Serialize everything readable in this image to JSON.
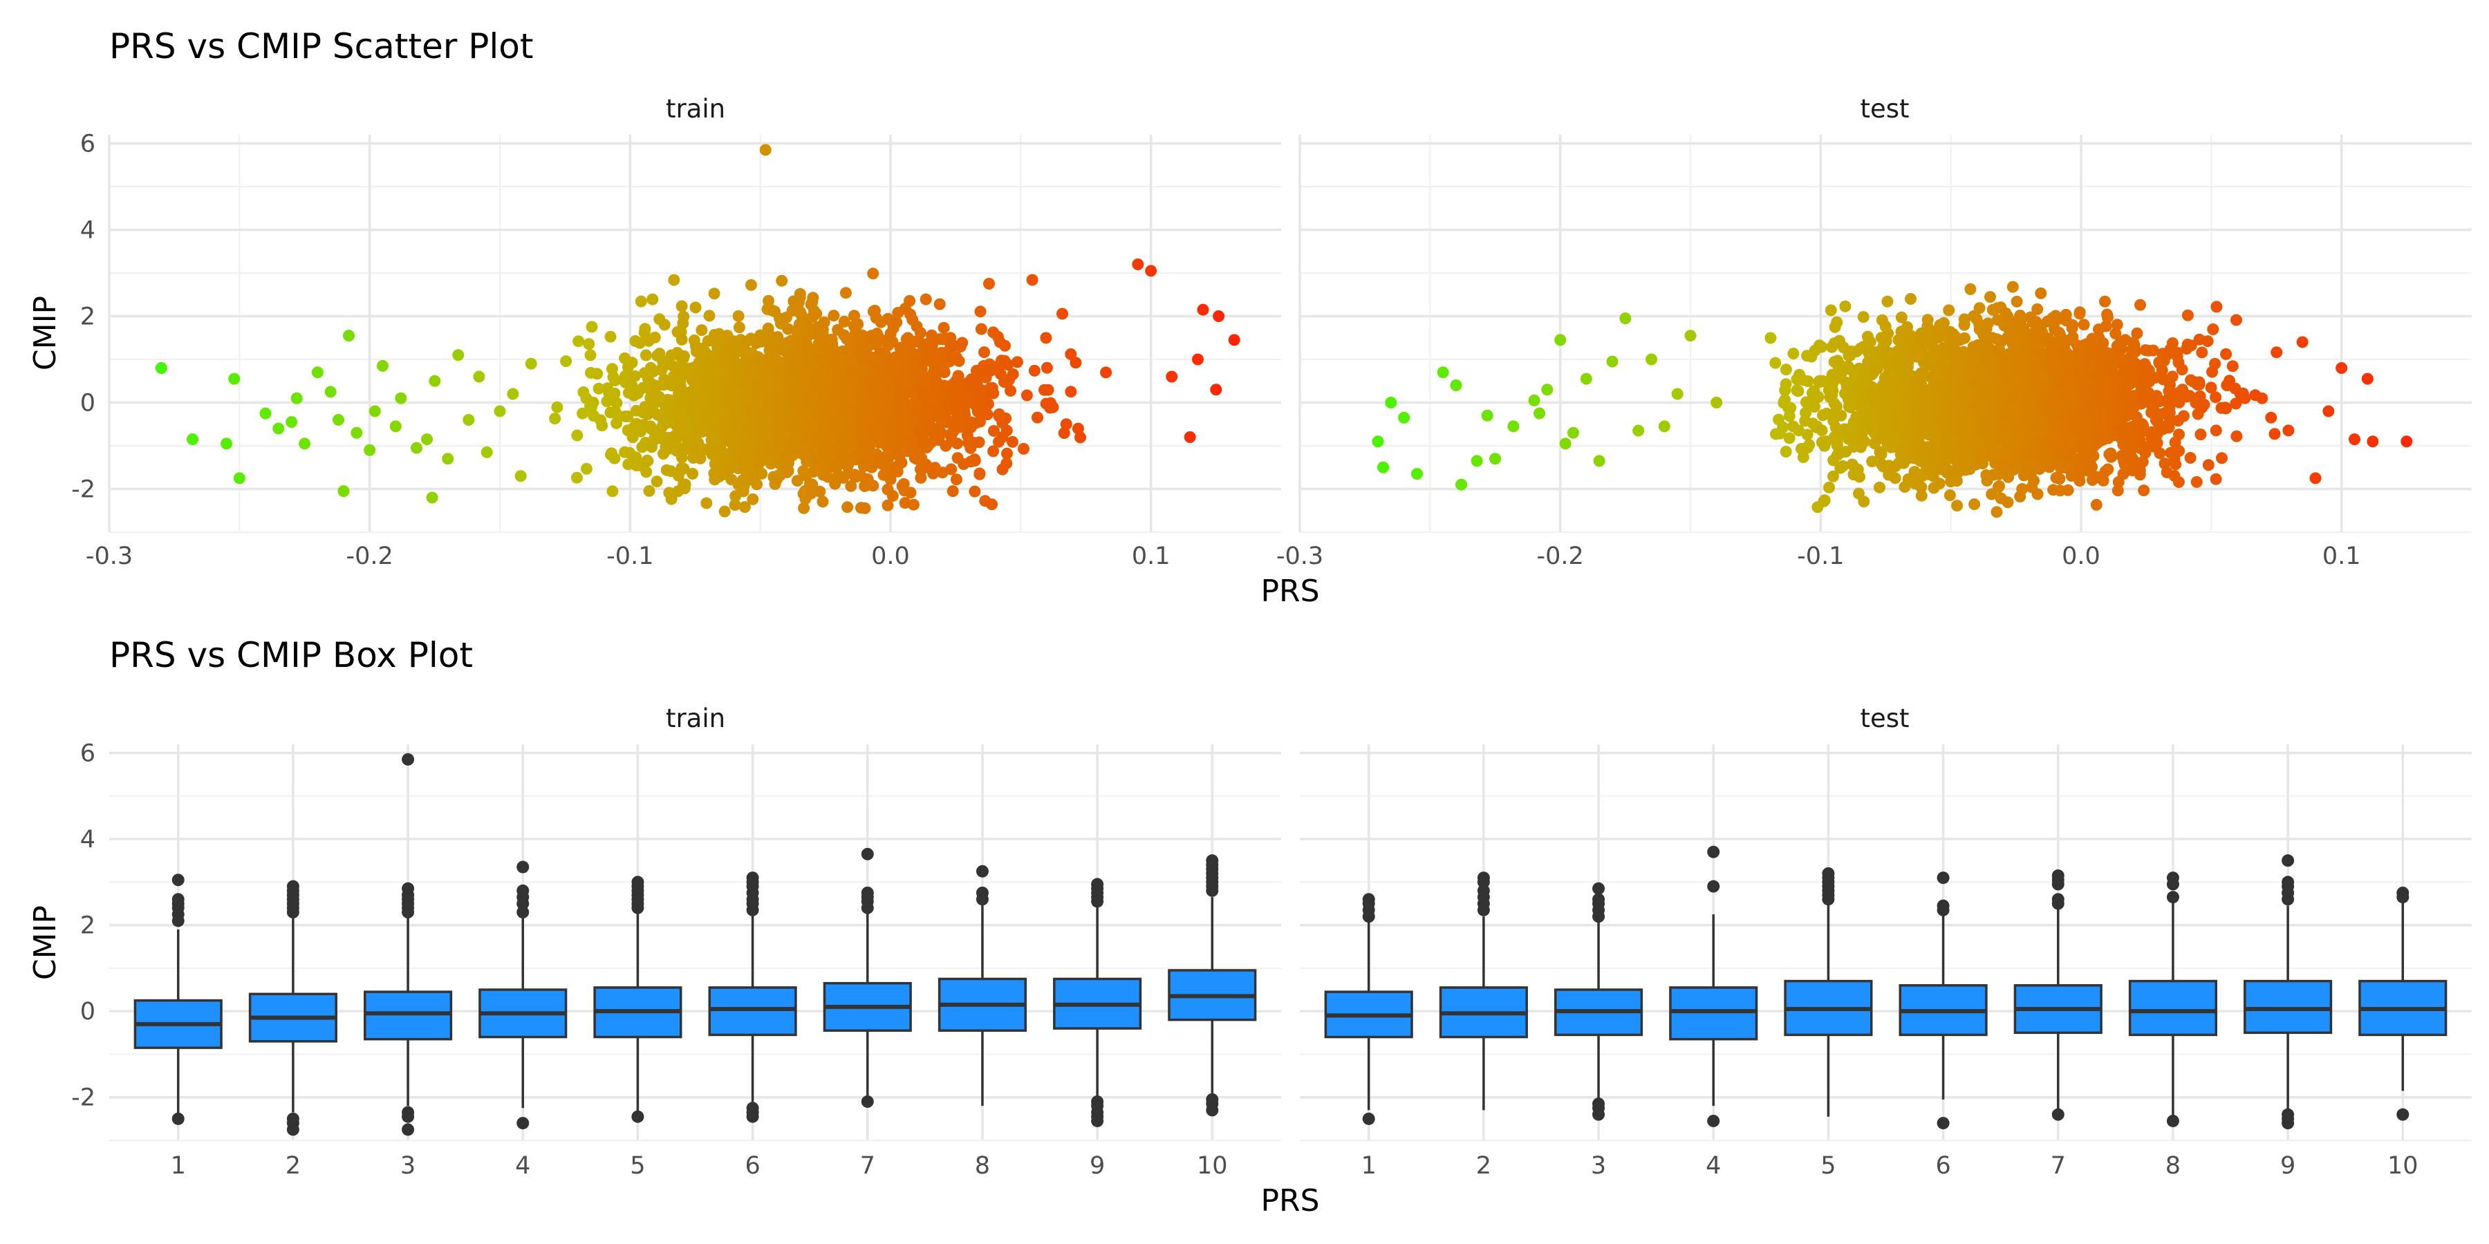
{
  "scatter": {
    "title": "PRS vs CMIP Scatter Plot",
    "xlabel": "PRS",
    "ylabel": "CMIP",
    "x_ticks": [
      -0.3,
      -0.2,
      -0.1,
      0.0,
      0.1
    ],
    "x_tick_labels": [
      "-0.3",
      "-0.2",
      "-0.1",
      "0.0",
      "0.1"
    ],
    "y_ticks": [
      -2,
      0,
      2,
      4,
      6
    ],
    "y_tick_labels": [
      "-2",
      "0",
      "2",
      "4",
      "6"
    ]
  },
  "box": {
    "title": "PRS vs CMIP Box Plot",
    "xlabel": "PRS",
    "ylabel": "CMIP",
    "y_ticks": [
      -2,
      0,
      2,
      4,
      6
    ],
    "y_tick_labels": [
      "-2",
      "0",
      "2",
      "4",
      "6"
    ]
  },
  "chart_data": [
    {
      "type": "scatter",
      "title": "PRS vs CMIP Scatter Plot",
      "xlabel": "PRS",
      "ylabel": "CMIP",
      "xlim": [
        -0.3,
        0.15
      ],
      "ylim": [
        -3.0,
        6.2
      ],
      "grid": true,
      "color_scale": {
        "low": "#33ff00",
        "mid": "#c0bb00",
        "high": "#ff2200",
        "mapped_to": "PRS"
      },
      "facets": [
        {
          "name": "train",
          "bulk": {
            "x_range": [
              -0.13,
              0.09
            ],
            "x_center": -0.03,
            "y_center": 0.0,
            "y_sd": 0.9,
            "y_range": [
              -2.7,
              3.6
            ]
          },
          "points": [
            {
              "x": -0.28,
              "y": 0.8
            },
            {
              "x": -0.268,
              "y": -0.85
            },
            {
              "x": -0.255,
              "y": -0.95
            },
            {
              "x": -0.252,
              "y": 0.55
            },
            {
              "x": -0.25,
              "y": -1.75
            },
            {
              "x": -0.24,
              "y": -0.25
            },
            {
              "x": -0.235,
              "y": -0.6
            },
            {
              "x": -0.23,
              "y": -0.45
            },
            {
              "x": -0.228,
              "y": 0.1
            },
            {
              "x": -0.225,
              "y": -0.95
            },
            {
              "x": -0.22,
              "y": 0.7
            },
            {
              "x": -0.215,
              "y": 0.25
            },
            {
              "x": -0.212,
              "y": -0.4
            },
            {
              "x": -0.21,
              "y": -2.05
            },
            {
              "x": -0.208,
              "y": 1.55
            },
            {
              "x": -0.205,
              "y": -0.7
            },
            {
              "x": -0.2,
              "y": -1.1
            },
            {
              "x": -0.198,
              "y": -0.2
            },
            {
              "x": -0.195,
              "y": 0.85
            },
            {
              "x": -0.19,
              "y": -0.55
            },
            {
              "x": -0.188,
              "y": 0.1
            },
            {
              "x": -0.182,
              "y": -1.05
            },
            {
              "x": -0.178,
              "y": -0.85
            },
            {
              "x": -0.175,
              "y": 0.5
            },
            {
              "x": -0.17,
              "y": -1.3
            },
            {
              "x": -0.166,
              "y": 1.1
            },
            {
              "x": -0.162,
              "y": -0.4
            },
            {
              "x": -0.158,
              "y": 0.6
            },
            {
              "x": -0.155,
              "y": -1.15
            },
            {
              "x": -0.15,
              "y": -0.2
            },
            {
              "x": -0.176,
              "y": -2.2
            },
            {
              "x": -0.145,
              "y": 0.2
            },
            {
              "x": -0.142,
              "y": -1.7
            },
            {
              "x": -0.138,
              "y": 0.9
            },
            {
              "x": -0.048,
              "y": 5.85
            },
            {
              "x": 0.1,
              "y": 3.05
            },
            {
              "x": 0.095,
              "y": 3.2
            },
            {
              "x": 0.12,
              "y": 2.15
            },
            {
              "x": 0.126,
              "y": 2.0
            },
            {
              "x": 0.132,
              "y": 1.45
            },
            {
              "x": 0.115,
              "y": -0.8
            },
            {
              "x": 0.108,
              "y": 0.6
            },
            {
              "x": 0.118,
              "y": 1.0
            },
            {
              "x": 0.125,
              "y": 0.3
            }
          ]
        },
        {
          "name": "test",
          "bulk": {
            "x_range": [
              -0.12,
              0.08
            ],
            "x_center": -0.03,
            "y_center": 0.0,
            "y_sd": 0.85,
            "y_range": [
              -2.6,
              3.7
            ]
          },
          "points": [
            {
              "x": -0.27,
              "y": -0.9
            },
            {
              "x": -0.268,
              "y": -1.5
            },
            {
              "x": -0.265,
              "y": 0.0
            },
            {
              "x": -0.26,
              "y": -0.35
            },
            {
              "x": -0.255,
              "y": -1.65
            },
            {
              "x": -0.245,
              "y": 0.7
            },
            {
              "x": -0.24,
              "y": 0.4
            },
            {
              "x": -0.238,
              "y": -1.9
            },
            {
              "x": -0.232,
              "y": -1.35
            },
            {
              "x": -0.228,
              "y": -0.3
            },
            {
              "x": -0.225,
              "y": -1.3
            },
            {
              "x": -0.218,
              "y": -0.55
            },
            {
              "x": -0.21,
              "y": 0.05
            },
            {
              "x": -0.208,
              "y": -0.25
            },
            {
              "x": -0.205,
              "y": 0.3
            },
            {
              "x": -0.2,
              "y": 1.45
            },
            {
              "x": -0.198,
              "y": -0.95
            },
            {
              "x": -0.195,
              "y": -0.7
            },
            {
              "x": -0.19,
              "y": 0.55
            },
            {
              "x": -0.185,
              "y": -1.35
            },
            {
              "x": -0.18,
              "y": 0.95
            },
            {
              "x": -0.175,
              "y": 1.95
            },
            {
              "x": -0.17,
              "y": -0.65
            },
            {
              "x": -0.165,
              "y": 1.0
            },
            {
              "x": -0.16,
              "y": -0.55
            },
            {
              "x": -0.155,
              "y": 0.2
            },
            {
              "x": -0.15,
              "y": 1.55
            },
            {
              "x": -0.14,
              "y": 0.0
            },
            {
              "x": 0.1,
              "y": 0.8
            },
            {
              "x": 0.105,
              "y": -0.85
            },
            {
              "x": 0.11,
              "y": 0.55
            },
            {
              "x": 0.112,
              "y": -0.9
            },
            {
              "x": 0.125,
              "y": -0.9
            },
            {
              "x": 0.09,
              "y": -1.75
            },
            {
              "x": 0.095,
              "y": -0.2
            },
            {
              "x": 0.085,
              "y": 1.4
            }
          ]
        }
      ]
    },
    {
      "type": "box",
      "title": "PRS vs CMIP Box Plot",
      "xlabel": "PRS",
      "ylabel": "CMIP",
      "categories": [
        "1",
        "2",
        "3",
        "4",
        "5",
        "6",
        "7",
        "8",
        "9",
        "10"
      ],
      "ylim": [
        -3.0,
        6.2
      ],
      "box_color": "#1e90ff",
      "facets": [
        {
          "name": "train",
          "boxes": [
            {
              "q1": -0.85,
              "median": -0.3,
              "q3": 0.25,
              "whisker_low": -2.45,
              "whisker_high": 1.9,
              "outliers": [
                2.1,
                2.25,
                2.4,
                2.5,
                2.6,
                3.05,
                -2.5
              ]
            },
            {
              "q1": -0.7,
              "median": -0.15,
              "q3": 0.4,
              "whisker_low": -2.35,
              "whisker_high": 2.2,
              "outliers": [
                2.3,
                2.4,
                2.5,
                2.6,
                2.7,
                2.8,
                2.9,
                -2.5,
                -2.6,
                -2.75
              ]
            },
            {
              "q1": -0.65,
              "median": -0.05,
              "q3": 0.45,
              "whisker_low": -2.2,
              "whisker_high": 2.2,
              "outliers": [
                2.3,
                2.4,
                2.5,
                2.6,
                2.7,
                2.85,
                5.85,
                -2.35,
                -2.45,
                -2.75
              ]
            },
            {
              "q1": -0.6,
              "median": -0.05,
              "q3": 0.5,
              "whisker_low": -2.25,
              "whisker_high": 2.2,
              "outliers": [
                2.3,
                2.5,
                2.65,
                2.8,
                3.35,
                -2.6
              ]
            },
            {
              "q1": -0.6,
              "median": 0.0,
              "q3": 0.55,
              "whisker_low": -2.35,
              "whisker_high": 2.3,
              "outliers": [
                2.4,
                2.5,
                2.6,
                2.7,
                2.8,
                2.9,
                3.0,
                -2.45
              ]
            },
            {
              "q1": -0.55,
              "median": 0.05,
              "q3": 0.55,
              "whisker_low": -2.15,
              "whisker_high": 2.25,
              "outliers": [
                2.35,
                2.5,
                2.6,
                2.75,
                2.9,
                3.0,
                3.1,
                -2.25,
                -2.35,
                -2.45
              ]
            },
            {
              "q1": -0.45,
              "median": 0.1,
              "q3": 0.65,
              "whisker_low": -2.1,
              "whisker_high": 2.3,
              "outliers": [
                2.4,
                2.55,
                2.65,
                2.75,
                3.65,
                -2.1
              ]
            },
            {
              "q1": -0.45,
              "median": 0.15,
              "q3": 0.75,
              "whisker_low": -2.2,
              "whisker_high": 2.5,
              "outliers": [
                2.6,
                2.75,
                3.25
              ]
            },
            {
              "q1": -0.4,
              "median": 0.15,
              "q3": 0.75,
              "whisker_low": -2.05,
              "whisker_high": 2.45,
              "outliers": [
                2.55,
                2.65,
                2.75,
                2.85,
                2.95,
                -2.1,
                -2.2,
                -2.35,
                -2.45,
                -2.55
              ]
            },
            {
              "q1": -0.2,
              "median": 0.35,
              "q3": 0.95,
              "whisker_low": -1.95,
              "whisker_high": 2.65,
              "outliers": [
                2.8,
                2.9,
                3.0,
                3.1,
                3.2,
                3.3,
                3.4,
                3.5,
                -2.05,
                -2.15,
                -2.3
              ]
            }
          ]
        },
        {
          "name": "test",
          "boxes": [
            {
              "q1": -0.6,
              "median": -0.1,
              "q3": 0.45,
              "whisker_low": -2.3,
              "whisker_high": 2.1,
              "outliers": [
                2.2,
                2.35,
                2.5,
                2.6,
                -2.5
              ]
            },
            {
              "q1": -0.6,
              "median": -0.05,
              "q3": 0.55,
              "whisker_low": -2.3,
              "whisker_high": 2.2,
              "outliers": [
                2.35,
                2.5,
                2.65,
                2.8,
                3.0,
                3.1
              ]
            },
            {
              "q1": -0.55,
              "median": 0.0,
              "q3": 0.5,
              "whisker_low": -2.05,
              "whisker_high": 2.1,
              "outliers": [
                2.2,
                2.35,
                2.5,
                2.6,
                2.85,
                -2.15,
                -2.25,
                -2.4
              ]
            },
            {
              "q1": -0.65,
              "median": 0.0,
              "q3": 0.55,
              "whisker_low": -2.2,
              "whisker_high": 2.25,
              "outliers": [
                2.9,
                3.7,
                -2.55
              ]
            },
            {
              "q1": -0.55,
              "median": 0.05,
              "q3": 0.7,
              "whisker_low": -2.45,
              "whisker_high": 2.5,
              "outliers": [
                2.6,
                2.7,
                2.8,
                2.9,
                3.0,
                3.1,
                3.2
              ]
            },
            {
              "q1": -0.55,
              "median": 0.0,
              "q3": 0.6,
              "whisker_low": -2.05,
              "whisker_high": 2.25,
              "outliers": [
                2.35,
                2.45,
                3.1,
                -2.6
              ]
            },
            {
              "q1": -0.5,
              "median": 0.05,
              "q3": 0.6,
              "whisker_low": -2.35,
              "whisker_high": 2.4,
              "outliers": [
                2.5,
                2.6,
                2.95,
                3.05,
                3.15,
                -2.4
              ]
            },
            {
              "q1": -0.55,
              "median": 0.0,
              "q3": 0.7,
              "whisker_low": -2.5,
              "whisker_high": 2.55,
              "outliers": [
                2.65,
                2.95,
                3.1,
                -2.55
              ]
            },
            {
              "q1": -0.5,
              "median": 0.05,
              "q3": 0.7,
              "whisker_low": -2.3,
              "whisker_high": 2.45,
              "outliers": [
                2.6,
                2.75,
                2.9,
                3.0,
                3.5,
                -2.4,
                -2.5,
                -2.6
              ]
            },
            {
              "q1": -0.55,
              "median": 0.05,
              "q3": 0.7,
              "whisker_low": -1.85,
              "whisker_high": 2.55,
              "outliers": [
                2.65,
                2.75,
                -2.4
              ]
            }
          ]
        }
      ]
    }
  ]
}
